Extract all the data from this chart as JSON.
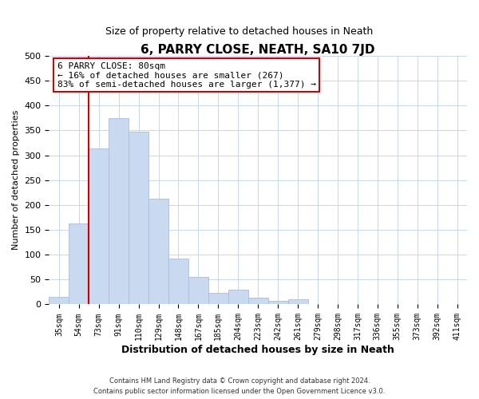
{
  "title": "6, PARRY CLOSE, NEATH, SA10 7JD",
  "subtitle": "Size of property relative to detached houses in Neath",
  "xlabel": "Distribution of detached houses by size in Neath",
  "ylabel": "Number of detached properties",
  "bar_labels": [
    "35sqm",
    "54sqm",
    "73sqm",
    "91sqm",
    "110sqm",
    "129sqm",
    "148sqm",
    "167sqm",
    "185sqm",
    "204sqm",
    "223sqm",
    "242sqm",
    "261sqm",
    "279sqm",
    "298sqm",
    "317sqm",
    "336sqm",
    "355sqm",
    "373sqm",
    "392sqm",
    "411sqm"
  ],
  "bar_values": [
    16,
    163,
    314,
    375,
    347,
    213,
    93,
    55,
    24,
    29,
    14,
    7,
    10,
    0,
    1,
    0,
    0,
    0,
    0,
    0,
    0
  ],
  "bar_color": "#c9d9f0",
  "bar_edge_color": "#aabdd8",
  "vline_color": "#cc0000",
  "ylim": [
    0,
    500
  ],
  "annotation_title": "6 PARRY CLOSE: 80sqm",
  "annotation_line1": "← 16% of detached houses are smaller (267)",
  "annotation_line2": "83% of semi-detached houses are larger (1,377) →",
  "annotation_box_color": "#ffffff",
  "annotation_box_edge": "#cc0000",
  "footer_line1": "Contains HM Land Registry data © Crown copyright and database right 2024.",
  "footer_line2": "Contains public sector information licensed under the Open Government Licence v3.0.",
  "background_color": "#ffffff",
  "grid_color": "#c8d8ea",
  "yticks": [
    0,
    50,
    100,
    150,
    200,
    250,
    300,
    350,
    400,
    450,
    500
  ]
}
